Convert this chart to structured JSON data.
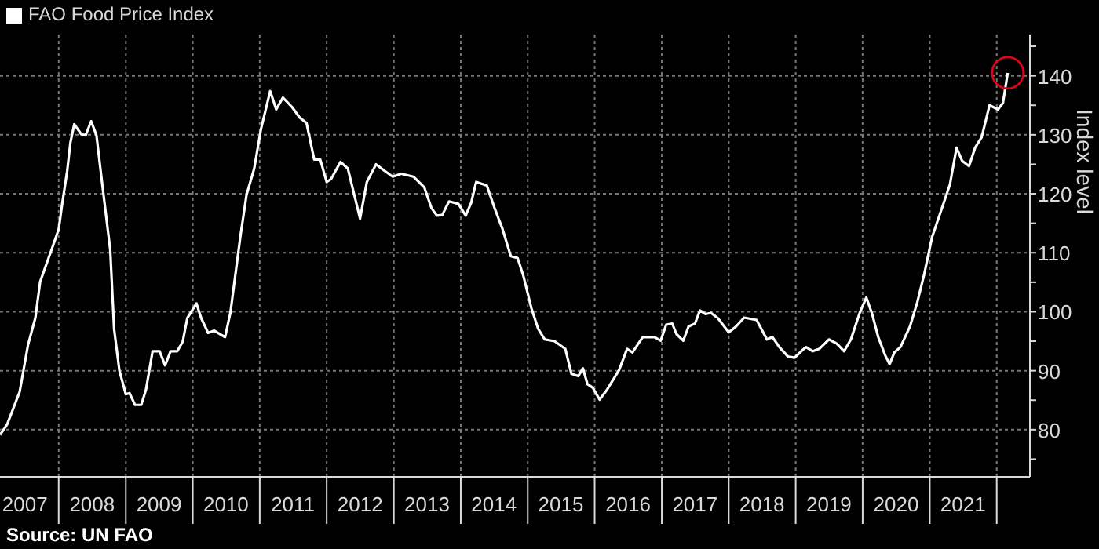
{
  "chart_data": {
    "type": "line",
    "legend": "top left",
    "grid": true,
    "marker": "none",
    "line_style": "solid",
    "ylabel": "Index level",
    "annotations": [
      "Source: UN FAO"
    ],
    "xlim": [
      "2007-02-15",
      "2022-07-01"
    ],
    "ylim": [
      72,
      147
    ],
    "xticks": [
      {
        "value": "2007-07-01",
        "label": "2007"
      },
      {
        "value": "2008-01-01",
        "label": null
      },
      {
        "value": "2008-07-01",
        "label": "2008"
      },
      {
        "value": "2009-01-01",
        "label": null
      },
      {
        "value": "2009-07-01",
        "label": "2009"
      },
      {
        "value": "2010-01-01",
        "label": null
      },
      {
        "value": "2010-07-01",
        "label": "2010"
      },
      {
        "value": "2011-01-01",
        "label": null
      },
      {
        "value": "2011-07-01",
        "label": "2011"
      },
      {
        "value": "2012-01-01",
        "label": null
      },
      {
        "value": "2012-07-01",
        "label": "2012"
      },
      {
        "value": "2013-01-01",
        "label": null
      },
      {
        "value": "2013-07-01",
        "label": "2013"
      },
      {
        "value": "2014-01-01",
        "label": null
      },
      {
        "value": "2014-07-01",
        "label": "2014"
      },
      {
        "value": "2015-01-01",
        "label": null
      },
      {
        "value": "2015-07-01",
        "label": "2015"
      },
      {
        "value": "2016-01-01",
        "label": null
      },
      {
        "value": "2016-07-01",
        "label": "2016"
      },
      {
        "value": "2017-01-01",
        "label": null
      },
      {
        "value": "2017-07-01",
        "label": "2017"
      },
      {
        "value": "2018-01-01",
        "label": null
      },
      {
        "value": "2018-07-01",
        "label": "2018"
      },
      {
        "value": "2019-01-01",
        "label": null
      },
      {
        "value": "2019-07-01",
        "label": "2019"
      },
      {
        "value": "2020-01-01",
        "label": null
      },
      {
        "value": "2020-07-01",
        "label": "2020"
      },
      {
        "value": "2021-01-01",
        "label": null
      },
      {
        "value": "2021-07-01",
        "label": "2021"
      },
      {
        "value": "2022-01-01",
        "label": null
      }
    ],
    "yticks": [
      {
        "value": 75,
        "label": null
      },
      80,
      {
        "value": 85,
        "label": null
      },
      90,
      {
        "value": 95,
        "label": null
      },
      100,
      {
        "value": 105,
        "label": null
      },
      110,
      {
        "value": 115,
        "label": null
      },
      120,
      {
        "value": 125,
        "label": null
      },
      130,
      {
        "value": 135,
        "label": null
      },
      140,
      {
        "value": 145,
        "label": null
      }
    ],
    "x": [
      "2007-02-15",
      "2007-03-26",
      "2007-06-02",
      "2007-07-18",
      "2007-08-27",
      "2007-09-22",
      "2007-11-23",
      "2008-01-01",
      "2008-01-21",
      "2008-02-16",
      "2008-03-05",
      "2008-03-26",
      "2008-05-03",
      "2008-05-27",
      "2008-06-26",
      "2008-07-25",
      "2008-08-24",
      "2008-10-08",
      "2008-10-29",
      "2008-11-27",
      "2009-01-01",
      "2009-01-21",
      "2009-02-20",
      "2009-03-26",
      "2009-04-21",
      "2009-05-27",
      "2009-07-04",
      "2009-08-03",
      "2009-09-02",
      "2009-10-08",
      "2009-11-07",
      "2009-12-02",
      "2010-01-21",
      "2010-02-16",
      "2010-03-26",
      "2010-04-28",
      "2010-06-26",
      "2010-07-25",
      "2010-09-19",
      "2010-10-21",
      "2010-12-02",
      "2011-01-08",
      "2011-02-27",
      "2011-04-01",
      "2011-05-07",
      "2011-06-26",
      "2011-08-07",
      "2011-09-13",
      "2011-10-25",
      "2011-11-27",
      "2012-01-01",
      "2012-01-25",
      "2012-03-16",
      "2012-04-25",
      "2012-07-01",
      "2012-08-07",
      "2012-09-26",
      "2012-11-07",
      "2012-12-26",
      "2013-02-10",
      "2013-04-18",
      "2013-06-16",
      "2013-07-25",
      "2013-08-24",
      "2013-09-22",
      "2013-10-29",
      "2013-12-19",
      "2014-01-28",
      "2014-02-27",
      "2014-03-26",
      "2014-05-23",
      "2014-07-04",
      "2014-08-17",
      "2014-10-01",
      "2014-11-07",
      "2014-12-09",
      "2015-01-21",
      "2015-02-27",
      "2015-04-04",
      "2015-05-27",
      "2015-07-25",
      "2015-08-27",
      "2015-10-04",
      "2015-10-29",
      "2015-11-23",
      "2015-12-22",
      "2016-01-28",
      "2016-03-09",
      "2016-05-13",
      "2016-06-26",
      "2016-07-25",
      "2016-09-19",
      "2016-11-23",
      "2016-12-26",
      "2017-01-25",
      "2017-02-27",
      "2017-03-22",
      "2017-04-28",
      "2017-05-27",
      "2017-07-01",
      "2017-07-28",
      "2017-08-27",
      "2017-09-26",
      "2017-11-03",
      "2018-01-01",
      "2018-02-10",
      "2018-03-26",
      "2018-06-02",
      "2018-07-28",
      "2018-08-27",
      "2018-10-04",
      "2018-11-20",
      "2018-12-26",
      "2019-02-07",
      "2019-02-27",
      "2019-04-04",
      "2019-05-10",
      "2019-07-01",
      "2019-08-13",
      "2019-09-22",
      "2019-10-29",
      "2019-12-16",
      "2020-01-21",
      "2020-02-20",
      "2020-03-26",
      "2020-05-03",
      "2020-05-27",
      "2020-06-22",
      "2020-07-25",
      "2020-09-15",
      "2020-10-25",
      "2020-12-02",
      "2021-01-14",
      "2021-02-27",
      "2021-04-21",
      "2021-05-27",
      "2021-06-26",
      "2021-08-03",
      "2021-09-05",
      "2021-10-11",
      "2021-11-23",
      "2022-01-08",
      "2022-02-04",
      "2022-03-02"
    ],
    "series": [
      {
        "name": "FAO Food Price Index",
        "color": "#ffffff",
        "values": [
          79.1,
          80.9,
          86.4,
          94.4,
          99.0,
          105.1,
          110.5,
          114.0,
          118.5,
          123.8,
          128.7,
          131.8,
          130.1,
          129.9,
          132.3,
          129.9,
          122.0,
          110.5,
          97.1,
          90.0,
          86.0,
          86.2,
          84.2,
          84.2,
          86.8,
          93.3,
          93.3,
          90.9,
          93.3,
          93.3,
          94.9,
          98.9,
          101.4,
          98.9,
          96.4,
          96.8,
          95.7,
          99.8,
          113.1,
          119.8,
          124.3,
          131.0,
          137.4,
          134.3,
          136.3,
          134.7,
          132.9,
          132.0,
          125.8,
          125.8,
          122.0,
          122.5,
          125.4,
          124.3,
          115.8,
          122.0,
          125.0,
          124.0,
          122.9,
          123.4,
          122.9,
          121.1,
          117.6,
          116.3,
          116.4,
          118.7,
          118.3,
          116.3,
          118.5,
          122.0,
          121.4,
          117.6,
          114.0,
          109.4,
          109.1,
          106.0,
          100.6,
          97.1,
          95.3,
          95.0,
          93.7,
          89.5,
          89.1,
          90.4,
          87.7,
          87.1,
          85.1,
          86.8,
          90.1,
          93.7,
          93.1,
          95.7,
          95.7,
          95.1,
          97.8,
          98.0,
          96.2,
          95.1,
          97.5,
          98.0,
          100.2,
          99.6,
          99.8,
          98.9,
          96.5,
          97.5,
          99.0,
          98.6,
          95.3,
          95.7,
          94.0,
          92.4,
          92.2,
          93.5,
          94.0,
          93.3,
          93.7,
          95.3,
          94.6,
          93.3,
          95.3,
          99.8,
          102.4,
          99.8,
          95.7,
          92.6,
          91.1,
          93.1,
          94.0,
          97.5,
          101.6,
          106.4,
          112.7,
          116.7,
          121.6,
          127.8,
          125.6,
          124.7,
          127.8,
          129.6,
          135.0,
          134.3,
          135.4,
          140.5
        ]
      }
    ]
  }
}
